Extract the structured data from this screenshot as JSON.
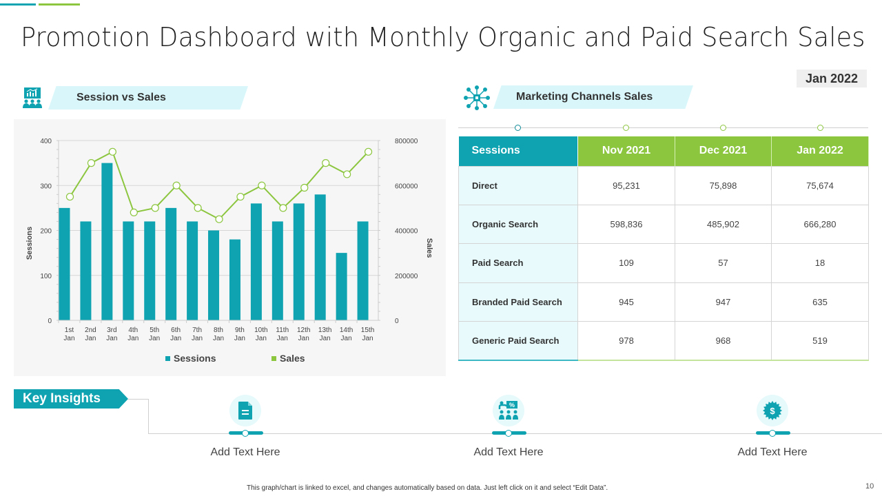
{
  "page": {
    "title": "Promotion Dashboard with Monthly Organic and Paid Search Sales",
    "date_badge": "Jan 2022",
    "footer_note": "This graph/chart is linked to excel, and changes automatically based on data. Just left click on it and select “Edit Data”.",
    "page_number": "10"
  },
  "colors": {
    "teal": "#0fa3b1",
    "green": "#8cc63f",
    "ribbon": "#d9f7fb"
  },
  "session_section": {
    "title": "Session vs Sales",
    "icon": "presentation-audience-icon"
  },
  "channels_section": {
    "title": "Marketing Channels Sales",
    "icon": "network-hub-icon",
    "table": {
      "headers": [
        "Sessions",
        "Nov 2021",
        "Dec 2021",
        "Jan 2022"
      ],
      "rows": [
        {
          "label": "Direct",
          "values": [
            "95,231",
            "75,898",
            "75,674"
          ]
        },
        {
          "label": "Organic Search",
          "values": [
            "598,836",
            "485,902",
            "666,280"
          ]
        },
        {
          "label": "Paid Search",
          "values": [
            "109",
            "57",
            "18"
          ]
        },
        {
          "label": "Branded Paid Search",
          "values": [
            "945",
            "947",
            "635"
          ]
        },
        {
          "label": "Generic Paid Search",
          "values": [
            "978",
            "968",
            "519"
          ]
        }
      ]
    }
  },
  "insights": {
    "tag": "Key Insights",
    "items": [
      {
        "icon": "document-icon",
        "text": "Add Text Here"
      },
      {
        "icon": "presentation-percent-icon",
        "text": "Add Text Here"
      },
      {
        "icon": "dollar-badge-icon",
        "text": "Add Text Here"
      }
    ]
  },
  "chart_data": {
    "type": "bar",
    "title": "Session vs Sales",
    "categories": [
      "1st Jan",
      "2nd Jan",
      "3rd Jan",
      "4th Jan",
      "5th Jan",
      "6th Jan",
      "7th Jan",
      "8th Jan",
      "9th Jan",
      "10th Jan",
      "11th Jan",
      "12th Jan",
      "13th Jan",
      "14th Jan",
      "15th Jan"
    ],
    "series": [
      {
        "name": "Sessions",
        "type": "bar",
        "axis": "left",
        "color": "#0fa3b1",
        "values": [
          250,
          220,
          350,
          220,
          220,
          250,
          220,
          200,
          180,
          260,
          220,
          260,
          280,
          150,
          220
        ]
      },
      {
        "name": "Sales",
        "type": "line",
        "axis": "right",
        "color": "#8cc63f",
        "values": [
          550000,
          700000,
          750000,
          480000,
          500000,
          600000,
          500000,
          450000,
          550000,
          600000,
          500000,
          590000,
          700000,
          650000,
          750000
        ]
      }
    ],
    "ylabel": "Sessions",
    "y2label": "Sales",
    "xlabel": "",
    "ylim": [
      0,
      400
    ],
    "y2lim": [
      0,
      800000
    ],
    "yticks": [
      0,
      100,
      200,
      300,
      400
    ],
    "y2ticks": [
      0,
      200000,
      400000,
      600000,
      800000
    ],
    "grid": true,
    "legend": "bottom"
  }
}
